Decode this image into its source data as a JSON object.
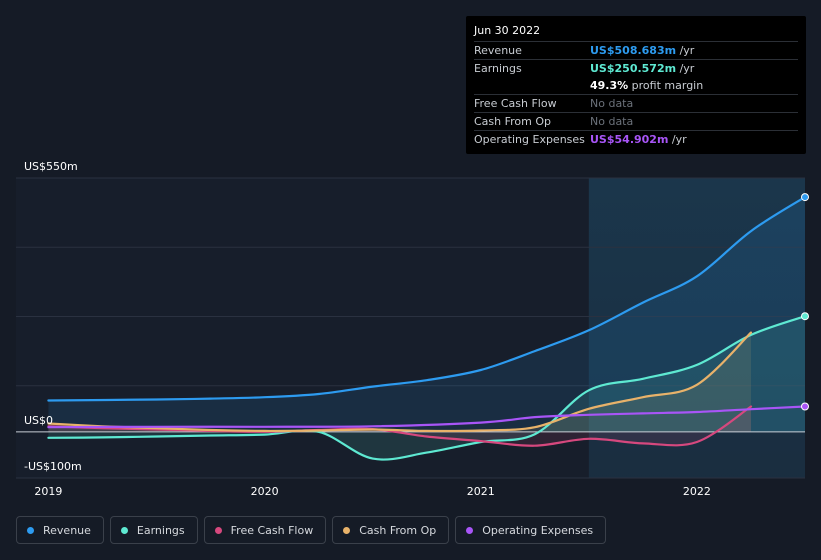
{
  "tooltip": {
    "date": "Jun 30 2022",
    "rows": [
      {
        "label": "Revenue",
        "value": "US$508.683m",
        "unit": "/yr",
        "color": "#2d9bf0"
      },
      {
        "label": "Earnings",
        "value": "US$250.572m",
        "unit": "/yr",
        "color": "#5ee9d2"
      },
      {
        "label": "",
        "value": "49.3%",
        "unit": "profit margin",
        "color": "#ffffff"
      },
      {
        "label": "Free Cash Flow",
        "value": "No data",
        "unit": "",
        "color": "#6b717a"
      },
      {
        "label": "Cash From Op",
        "value": "No data",
        "unit": "",
        "color": "#6b717a"
      },
      {
        "label": "Operating Expenses",
        "value": "US$54.902m",
        "unit": "/yr",
        "color": "#a855f7"
      }
    ]
  },
  "axis": {
    "y_top_label": "US$550m",
    "y_zero_label": "US$0",
    "y_bottom_label": "-US$100m"
  },
  "legend": [
    {
      "label": "Revenue",
      "color": "#2d9bf0"
    },
    {
      "label": "Earnings",
      "color": "#5ee9d2"
    },
    {
      "label": "Free Cash Flow",
      "color": "#d6487e"
    },
    {
      "label": "Cash From Op",
      "color": "#e8b26a"
    },
    {
      "label": "Operating Expenses",
      "color": "#a855f7"
    }
  ],
  "chart_data": {
    "type": "line",
    "title": "",
    "xlabel": "",
    "ylabel": "",
    "ylim": [
      -100,
      550
    ],
    "xlim": [
      2018.85,
      2022.5
    ],
    "x_ticks": [
      {
        "value": 2019,
        "label": "2019"
      },
      {
        "value": 2020,
        "label": "2020"
      },
      {
        "value": 2021,
        "label": "2021"
      },
      {
        "value": 2022,
        "label": "2022"
      }
    ],
    "highlight_start": 2021.5,
    "series": [
      {
        "name": "Revenue",
        "color": "#2d9bf0",
        "fill": true,
        "end_marker": true,
        "x": [
          2019.0,
          2019.5,
          2019.75,
          2020.0,
          2020.25,
          2020.5,
          2020.75,
          2021.0,
          2021.25,
          2021.5,
          2021.75,
          2022.0,
          2022.25,
          2022.5
        ],
        "y": [
          68,
          70,
          72,
          75,
          82,
          98,
          112,
          134,
          175,
          220,
          280,
          337,
          435,
          508.683
        ]
      },
      {
        "name": "Earnings",
        "color": "#5ee9d2",
        "fill": true,
        "end_marker": true,
        "x": [
          2019.0,
          2019.25,
          2019.5,
          2019.75,
          2020.0,
          2020.25,
          2020.5,
          2020.75,
          2021.0,
          2021.25,
          2021.5,
          2021.75,
          2022.0,
          2022.25,
          2022.5
        ],
        "y": [
          -13,
          -12,
          -10,
          -8,
          -6,
          0,
          -58,
          -45,
          -22,
          -5,
          90,
          115,
          145,
          210,
          250.572
        ]
      },
      {
        "name": "Free Cash Flow",
        "color": "#d6487e",
        "fill": true,
        "end_marker": false,
        "x": [
          2019.0,
          2019.25,
          2019.5,
          2019.75,
          2020.0,
          2020.25,
          2020.5,
          2020.75,
          2021.0,
          2021.25,
          2021.5,
          2021.75,
          2022.0,
          2022.25
        ],
        "y": [
          12,
          8,
          5,
          2,
          0,
          4,
          6,
          -10,
          -20,
          -30,
          -15,
          -25,
          -22,
          55
        ]
      },
      {
        "name": "Cash From Op",
        "color": "#e8b26a",
        "fill": true,
        "end_marker": false,
        "x": [
          2019.0,
          2019.25,
          2019.5,
          2019.75,
          2020.0,
          2020.25,
          2020.5,
          2020.75,
          2021.0,
          2021.25,
          2021.5,
          2021.75,
          2022.0,
          2022.25
        ],
        "y": [
          18,
          12,
          8,
          4,
          2,
          3,
          5,
          2,
          3,
          10,
          50,
          75,
          102,
          215
        ]
      },
      {
        "name": "Operating Expenses",
        "color": "#a855f7",
        "fill": false,
        "end_marker": true,
        "x": [
          2019.0,
          2019.5,
          2020.0,
          2020.5,
          2021.0,
          2021.25,
          2021.5,
          2021.75,
          2022.0,
          2022.25,
          2022.5
        ],
        "y": [
          10,
          11,
          11,
          12,
          20,
          32,
          37,
          40,
          43,
          49,
          54.902
        ]
      }
    ]
  }
}
